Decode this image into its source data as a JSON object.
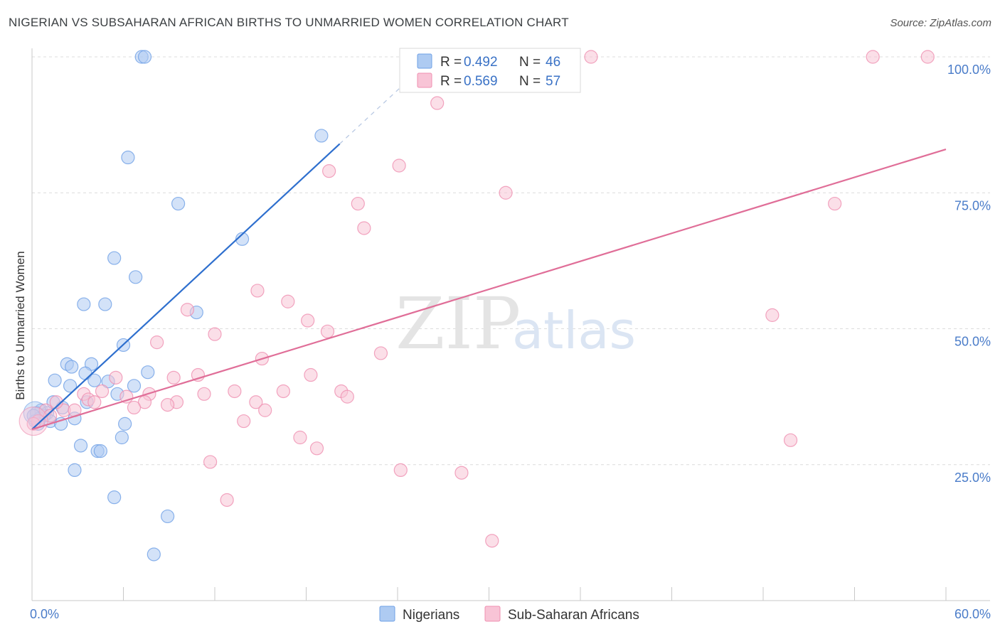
{
  "title": "NIGERIAN VS SUBSAHARAN AFRICAN BIRTHS TO UNMARRIED WOMEN CORRELATION CHART",
  "source": "Source: ZipAtlas.com",
  "watermark": {
    "zip": "ZIP",
    "atlas": "atlas"
  },
  "colors": {
    "nigerians": "#6fa0e6",
    "nigerians_fill": "#aecbf2",
    "nigerians_line": "#2e6fce",
    "subsaharan": "#ef8fb0",
    "subsaharan_fill": "#f8c4d6",
    "subsaharan_line": "#e06e98",
    "axis_tick": "#4a7cc9",
    "grid": "#dcdcdc"
  },
  "legend": {
    "rows": [
      {
        "r_label": "R = ",
        "r_value": "0.492",
        "n_label": "N = ",
        "n_value": "46"
      },
      {
        "r_label": "R = ",
        "r_value": "0.569",
        "n_label": "N = ",
        "n_value": "57"
      }
    ]
  },
  "bottom_legend": [
    "Nigerians",
    "Sub-Saharan Africans"
  ],
  "chart_data": {
    "type": "scatter",
    "title": "NIGERIAN VS SUBSAHARAN AFRICAN BIRTHS TO UNMARRIED WOMEN CORRELATION CHART",
    "xlabel": "",
    "ylabel": "Births to Unmarried Women",
    "xlim": [
      0,
      60
    ],
    "ylim": [
      0,
      102
    ],
    "x_tick_labels": [
      "0.0%",
      "60.0%"
    ],
    "y_ticks": [
      25,
      50,
      75,
      100
    ],
    "y_tick_labels": [
      "25.0%",
      "50.0%",
      "75.0%",
      "100.0%"
    ],
    "grid": true,
    "legend_placement": "top-center",
    "series": [
      {
        "name": "Nigerians",
        "r": 0.492,
        "n": 46,
        "trend": {
          "x0": 0,
          "y0": 31.5,
          "x1": 20.2,
          "y1": 84,
          "dashed_to_x": 25.2,
          "dashed_to_y": 97
        },
        "points": [
          [
            7.2,
            100
          ],
          [
            7.4,
            100
          ],
          [
            6.3,
            81.5
          ],
          [
            9.6,
            73
          ],
          [
            19,
            85.5
          ],
          [
            13.8,
            66.5
          ],
          [
            5.4,
            63
          ],
          [
            6.8,
            59.5
          ],
          [
            3.4,
            54.5
          ],
          [
            4.8,
            54.5
          ],
          [
            10.8,
            53
          ],
          [
            6,
            47
          ],
          [
            2.3,
            43.5
          ],
          [
            2.6,
            43
          ],
          [
            3.9,
            43.5
          ],
          [
            7.6,
            42
          ],
          [
            3.5,
            41.8
          ],
          [
            1.5,
            40.5
          ],
          [
            4.1,
            40.5
          ],
          [
            5,
            40.3
          ],
          [
            2.5,
            39.5
          ],
          [
            6.7,
            39.5
          ],
          [
            5.6,
            38
          ],
          [
            1.4,
            36.5
          ],
          [
            3.6,
            36.5
          ],
          [
            2,
            35.5
          ],
          [
            0.6,
            35
          ],
          [
            1,
            34.5
          ],
          [
            0.3,
            34.5
          ],
          [
            0.8,
            34
          ],
          [
            0.5,
            33.5
          ],
          [
            2.8,
            33.5
          ],
          [
            0.2,
            33
          ],
          [
            0.4,
            32.5
          ],
          [
            1.2,
            33
          ],
          [
            1.9,
            32.5
          ],
          [
            6.1,
            32.5
          ],
          [
            5.9,
            30
          ],
          [
            3.2,
            28.5
          ],
          [
            4.3,
            27.5
          ],
          [
            4.5,
            27.5
          ],
          [
            2.8,
            24
          ],
          [
            5.4,
            19
          ],
          [
            8.9,
            15.5
          ],
          [
            8,
            8.5
          ],
          [
            0.1,
            34
          ]
        ]
      },
      {
        "name": "Sub-Saharan Africans",
        "r": 0.569,
        "n": 57,
        "trend": {
          "x0": 0,
          "y0": 31.5,
          "x1": 60,
          "y1": 83
        },
        "points": [
          [
            36.7,
            100
          ],
          [
            55.2,
            100
          ],
          [
            58.8,
            100
          ],
          [
            26.6,
            91.5
          ],
          [
            24.1,
            80
          ],
          [
            19.5,
            79
          ],
          [
            31.1,
            75
          ],
          [
            21.4,
            73
          ],
          [
            52.7,
            73
          ],
          [
            21.8,
            68.5
          ],
          [
            14.8,
            57
          ],
          [
            10.2,
            53.5
          ],
          [
            16.8,
            55
          ],
          [
            18.1,
            51.5
          ],
          [
            48.6,
            52.5
          ],
          [
            19.4,
            49.5
          ],
          [
            12,
            49
          ],
          [
            8.2,
            47.5
          ],
          [
            22.9,
            45.5
          ],
          [
            15.1,
            44.5
          ],
          [
            10.9,
            41.5
          ],
          [
            18.3,
            41.5
          ],
          [
            9.3,
            41
          ],
          [
            5.5,
            41
          ],
          [
            16.5,
            38.5
          ],
          [
            13.3,
            38.5
          ],
          [
            20.3,
            38.5
          ],
          [
            20.7,
            37.5
          ],
          [
            7.7,
            38
          ],
          [
            11.3,
            38
          ],
          [
            3.4,
            38
          ],
          [
            4.6,
            38.5
          ],
          [
            6.2,
            37.5
          ],
          [
            7.4,
            36.5
          ],
          [
            9.5,
            36.5
          ],
          [
            8.9,
            36
          ],
          [
            6.7,
            35.5
          ],
          [
            14.7,
            36.5
          ],
          [
            15.3,
            35
          ],
          [
            2.1,
            35
          ],
          [
            3.7,
            37
          ],
          [
            4.1,
            36.5
          ],
          [
            1.6,
            36.5
          ],
          [
            0.9,
            35
          ],
          [
            1.2,
            34
          ],
          [
            0.4,
            33
          ],
          [
            0.1,
            32.5
          ],
          [
            13.9,
            33
          ],
          [
            17.6,
            30
          ],
          [
            49.8,
            29.5
          ],
          [
            18.7,
            28
          ],
          [
            11.7,
            25.5
          ],
          [
            24.2,
            24
          ],
          [
            28.2,
            23.5
          ],
          [
            12.8,
            18.5
          ],
          [
            30.2,
            11
          ],
          [
            2.8,
            35
          ]
        ]
      }
    ]
  }
}
